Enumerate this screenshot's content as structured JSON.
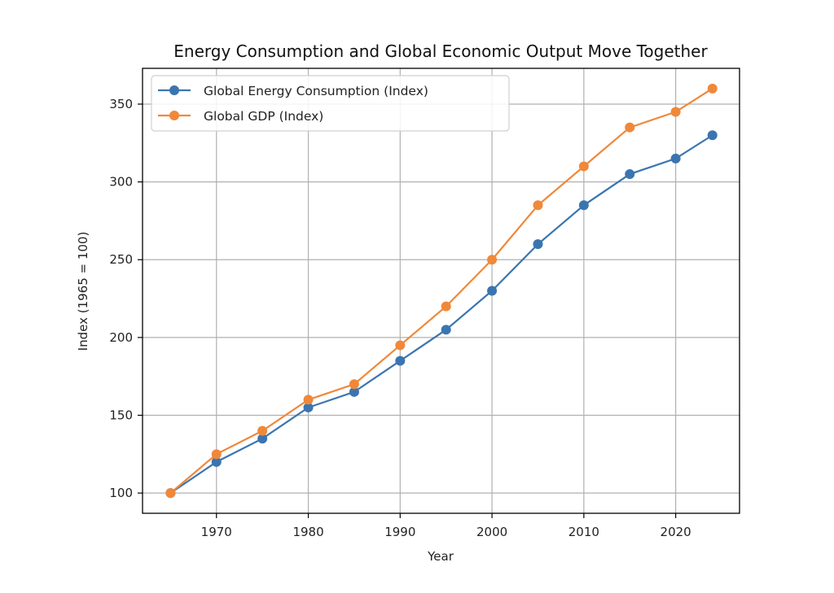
{
  "chart_data": {
    "type": "line",
    "title": "Energy Consumption and Global Economic Output Move Together",
    "xlabel": "Year",
    "ylabel": "Index (1965 = 100)",
    "x": [
      1965,
      1970,
      1975,
      1980,
      1985,
      1990,
      1995,
      2000,
      2005,
      2010,
      2015,
      2020,
      2024
    ],
    "series": [
      {
        "name": "Global Energy Consumption (Index)",
        "color": "#3a75b0",
        "values": [
          100,
          120,
          135,
          155,
          165,
          185,
          205,
          230,
          260,
          285,
          305,
          315,
          330
        ]
      },
      {
        "name": "Global GDP (Index)",
        "color": "#f0883a",
        "values": [
          100,
          125,
          140,
          160,
          170,
          195,
          220,
          250,
          285,
          310,
          335,
          345,
          360
        ]
      }
    ],
    "xticks": [
      1970,
      1980,
      1990,
      2000,
      2010,
      2020
    ],
    "yticks": [
      100,
      150,
      200,
      250,
      300,
      350
    ],
    "xlim": [
      1961.95,
      2026.95
    ],
    "ylim": [
      87,
      373
    ],
    "grid": true,
    "legend": "top-left"
  }
}
